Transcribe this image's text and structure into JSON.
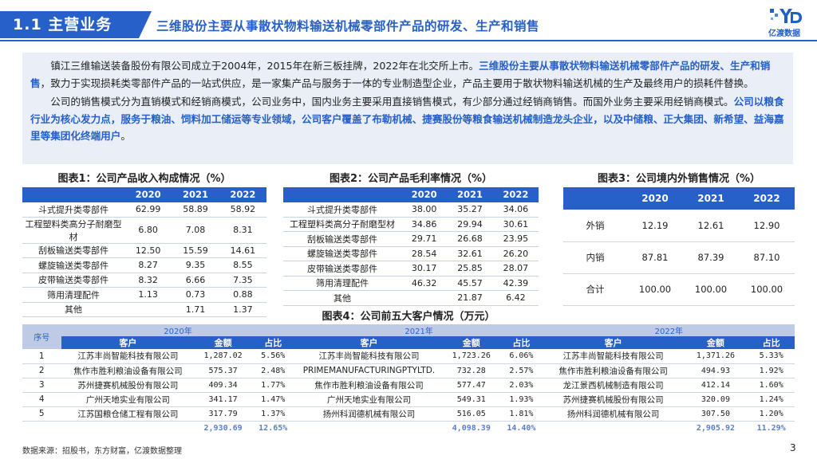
{
  "header": {
    "section": "1.1 主营业务",
    "title": "三维股份主要从事散状物料输送机械零部件产品的研发、生产和销售",
    "logo_text": "亿渡数据",
    "accent_color": "#2660c8"
  },
  "intro": {
    "p1_pre": "镇江三维输送装备股份有限公司成立于2004年，2015年在新三板挂牌，2022年在北交所上市。",
    "p1_hl": "三维股份主要从事散状物料输送机械零部件产品的研发、生产和销售",
    "p1_post": "，致力于实现损耗类零部件产品的一站式供应，是一家集产品与服务于一体的专业制造型企业，产品主要用于散状物料输送机械的生产及最终用户的损耗件替换。",
    "p2_pre": "公司的销售模式分为直销模式和经销商模式，公司业务中，国内业务主要采用直接销售模式，有少部分通过经销商销售。而国外业务主要采用经销商模式。",
    "p2_hl": "公司以粮食行业为核心发力点，服务于粮油、饲料加工储运等专业领域，公司客户覆盖了布勒机械、捷赛股份等粮食输送机械制造龙头企业，以及中储粮、正大集团、新希望、益海嘉里等集团化终端用户",
    "p2_post": "。"
  },
  "table1": {
    "title": "图表1：公司产品收入构成情况（%）",
    "years": [
      "2020",
      "2021",
      "2022"
    ],
    "rows": [
      {
        "name": "斗式提升类零部件",
        "v": [
          "62.99",
          "58.89",
          "58.92"
        ]
      },
      {
        "name": "工程塑料类高分子耐磨型材",
        "v": [
          "6.80",
          "7.08",
          "8.31"
        ]
      },
      {
        "name": "刮板输送类零部件",
        "v": [
          "12.50",
          "15.59",
          "14.61"
        ]
      },
      {
        "name": "螺旋输送类零部件",
        "v": [
          "8.27",
          "9.35",
          "8.55"
        ]
      },
      {
        "name": "皮带输送类零部件",
        "v": [
          "8.32",
          "6.66",
          "7.35"
        ]
      },
      {
        "name": "筛用清理配件",
        "v": [
          "1.13",
          "0.73",
          "0.88"
        ]
      },
      {
        "name": "其他",
        "v": [
          "",
          "1.71",
          "1.37"
        ]
      }
    ]
  },
  "table2": {
    "title": "图表2：公司产品毛利率情况（%）",
    "years": [
      "2020",
      "2021",
      "2022"
    ],
    "rows": [
      {
        "name": "斗式提升类零部件",
        "v": [
          "38.00",
          "35.27",
          "34.06"
        ]
      },
      {
        "name": "工程塑料类高分子耐磨型材",
        "v": [
          "34.86",
          "29.94",
          "30.61"
        ]
      },
      {
        "name": "刮板输送类零部件",
        "v": [
          "29.71",
          "26.68",
          "23.95"
        ]
      },
      {
        "name": "螺旋输送类零部件",
        "v": [
          "28.54",
          "32.61",
          "26.20"
        ]
      },
      {
        "name": "皮带输送类零部件",
        "v": [
          "30.17",
          "25.85",
          "28.07"
        ]
      },
      {
        "name": "筛用清理配件",
        "v": [
          "46.32",
          "45.57",
          "42.39"
        ]
      },
      {
        "name": "其他",
        "v": [
          "",
          "21.87",
          "6.42"
        ]
      }
    ]
  },
  "table3": {
    "title": "图表3：公司境内外销售情况（%）",
    "years": [
      "2020",
      "2021",
      "2022"
    ],
    "rows": [
      {
        "name": "外销",
        "v": [
          "12.19",
          "12.61",
          "12.90"
        ]
      },
      {
        "name": "内销",
        "v": [
          "87.81",
          "87.39",
          "87.10"
        ]
      },
      {
        "name": "合计",
        "v": [
          "100.00",
          "100.00",
          "100.00"
        ]
      }
    ]
  },
  "table4": {
    "title": "图表4：公司前五大客户情况（万元）",
    "seq_label": "序号",
    "years": [
      "2020年",
      "2021年",
      "2022年"
    ],
    "col_customer": "客户",
    "col_amount": "金额",
    "col_ratio": "占比",
    "rows": [
      {
        "no": "1",
        "c1": "江苏丰尚智能科技有限公司",
        "a1": "1,287.02",
        "r1": "5.56%",
        "c2": "江苏丰尚智能科技有限公司",
        "a2": "1,723.26",
        "r2": "6.06%",
        "c3": "江苏丰尚智能科技有限公司",
        "a3": "1,371.26",
        "r3": "5.33%"
      },
      {
        "no": "2",
        "c1": "焦作市胜利粮油设备有限公司",
        "a1": "575.37",
        "r1": "2.48%",
        "c2": "PRIMEMANUFACTURINGPTYLTD.",
        "a2": "732.28",
        "r2": "2.57%",
        "c3": "焦作市胜利粮油设备有限公司",
        "a3": "494.93",
        "r3": "1.92%"
      },
      {
        "no": "3",
        "c1": "苏州捷赛机械股份有限公司",
        "a1": "409.34",
        "r1": "1.77%",
        "c2": "焦作市胜利粮油设备有限公司",
        "a2": "577.47",
        "r2": "2.03%",
        "c3": "龙江景西机械制造有限公司",
        "a3": "412.14",
        "r3": "1.60%"
      },
      {
        "no": "4",
        "c1": "广州天地实业有限公司",
        "a1": "341.17",
        "r1": "1.47%",
        "c2": "广州天地实业有限公司",
        "a2": "549.31",
        "r2": "1.93%",
        "c3": "苏州捷赛机械股份有限公司",
        "a3": "320.09",
        "r3": "1.24%"
      },
      {
        "no": "5",
        "c1": "江苏国粮仓储工程有限公司",
        "a1": "317.79",
        "r1": "1.37%",
        "c2": "扬州科润德机械有限公司",
        "a2": "516.05",
        "r2": "1.81%",
        "c3": "扬州科润德机械有限公司",
        "a3": "307.50",
        "r3": "1.20%"
      }
    ],
    "total": {
      "a1": "2,930.69",
      "r1": "12.65%",
      "a2": "4,098.39",
      "r2": "14.40%",
      "a3": "2,905.92",
      "r3": "11.29%"
    }
  },
  "footer": {
    "source": "数据来源：招股书，东方财富，亿渡数据整理",
    "page": "3"
  }
}
